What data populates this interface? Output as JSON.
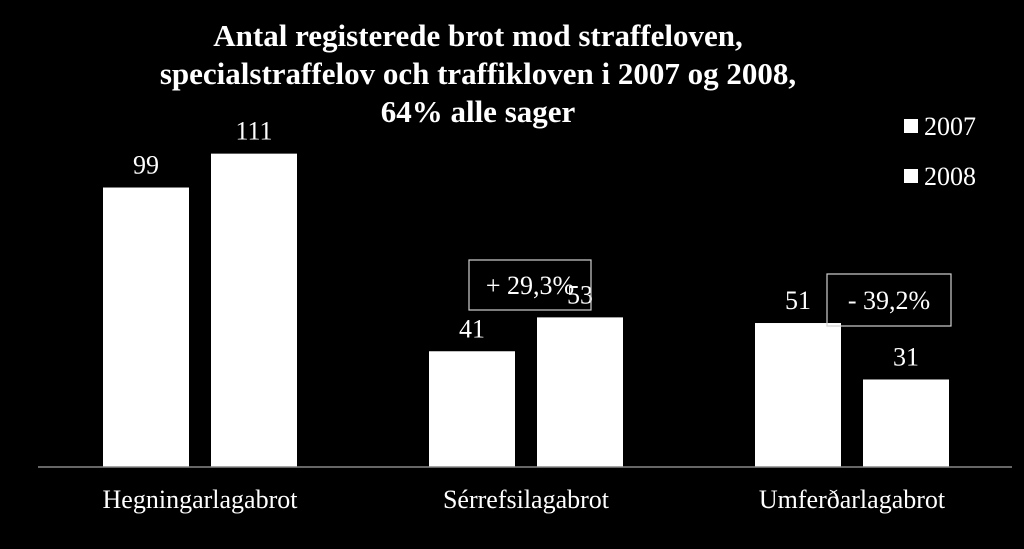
{
  "chart_data": {
    "type": "bar",
    "title_lines": [
      "Antal registerede brot mod straffeloven,",
      "specialstraffelov och traffikloven i 2007 og 2008,",
      "64% alle sager"
    ],
    "categories": [
      "Hegningarlagabrot",
      "Sérrefsilagabrot",
      "Umferðarlagabrot"
    ],
    "series": [
      {
        "name": "2007",
        "values": [
          99,
          41,
          51
        ],
        "color": "#ffffff"
      },
      {
        "name": "2008",
        "values": [
          111,
          53,
          31
        ],
        "color": "#ffffff"
      }
    ],
    "ylim": [
      0,
      130
    ],
    "grid": false,
    "legend_position": "top-right",
    "annotations": [
      {
        "category": "Sérrefsilagabrot",
        "text": "+ 29,3%"
      },
      {
        "category": "Umferðarlagabrot",
        "text": "- 39,2%"
      }
    ]
  },
  "colors": {
    "background": "#000000",
    "foreground": "#ffffff"
  }
}
